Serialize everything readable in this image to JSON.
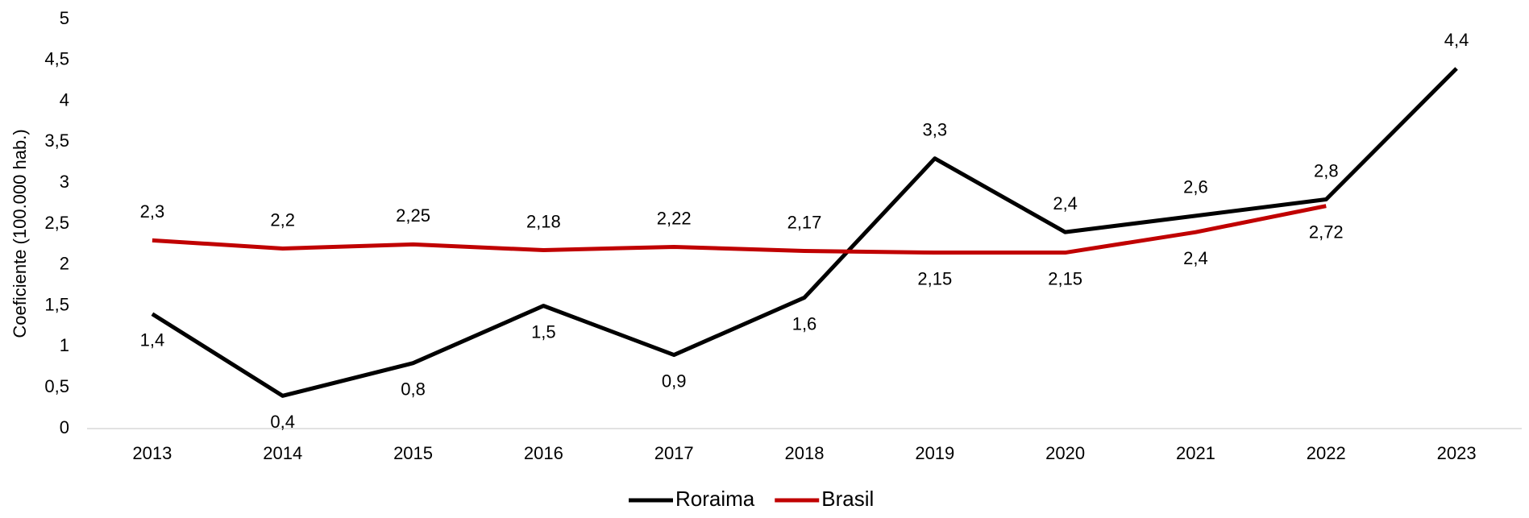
{
  "chart_data": {
    "type": "line",
    "y_label": "Coeficiente (100.000 hab.)",
    "categories": [
      "2013",
      "2014",
      "2015",
      "2016",
      "2017",
      "2018",
      "2019",
      "2020",
      "2021",
      "2022",
      "2023"
    ],
    "series": [
      {
        "name": "Roraima",
        "color": "#000000",
        "values": [
          1.4,
          0.4,
          0.8,
          1.5,
          0.9,
          1.6,
          3.3,
          2.4,
          2.6,
          2.8,
          4.4
        ],
        "value_labels": [
          "1,4",
          "0,4",
          "0,8",
          "1,5",
          "0,9",
          "1,6",
          "3,3",
          "2,4",
          "2,6",
          "2,8",
          "4,4"
        ]
      },
      {
        "name": "Brasil",
        "color": "#c00000",
        "values": [
          2.3,
          2.2,
          2.25,
          2.18,
          2.22,
          2.17,
          2.15,
          2.15,
          2.4,
          2.72,
          null
        ],
        "value_labels": [
          "2,3",
          "2,2",
          "2,25",
          "2,18",
          "2,22",
          "2,17",
          "2,15",
          "2,15",
          "2,4",
          "2,72",
          null
        ]
      }
    ],
    "ylim": [
      0,
      5
    ],
    "yticks": [
      0,
      {
        "value": 0.5,
        "label": "0,5"
      },
      1,
      {
        "value": 1.5,
        "label": "1,5"
      },
      2,
      {
        "value": 2.5,
        "label": "2,5"
      },
      3,
      {
        "value": 3.5,
        "label": "3,5"
      },
      4,
      {
        "value": 4.5,
        "label": "4,5"
      },
      5
    ],
    "grid": false,
    "legend": "bottom"
  }
}
